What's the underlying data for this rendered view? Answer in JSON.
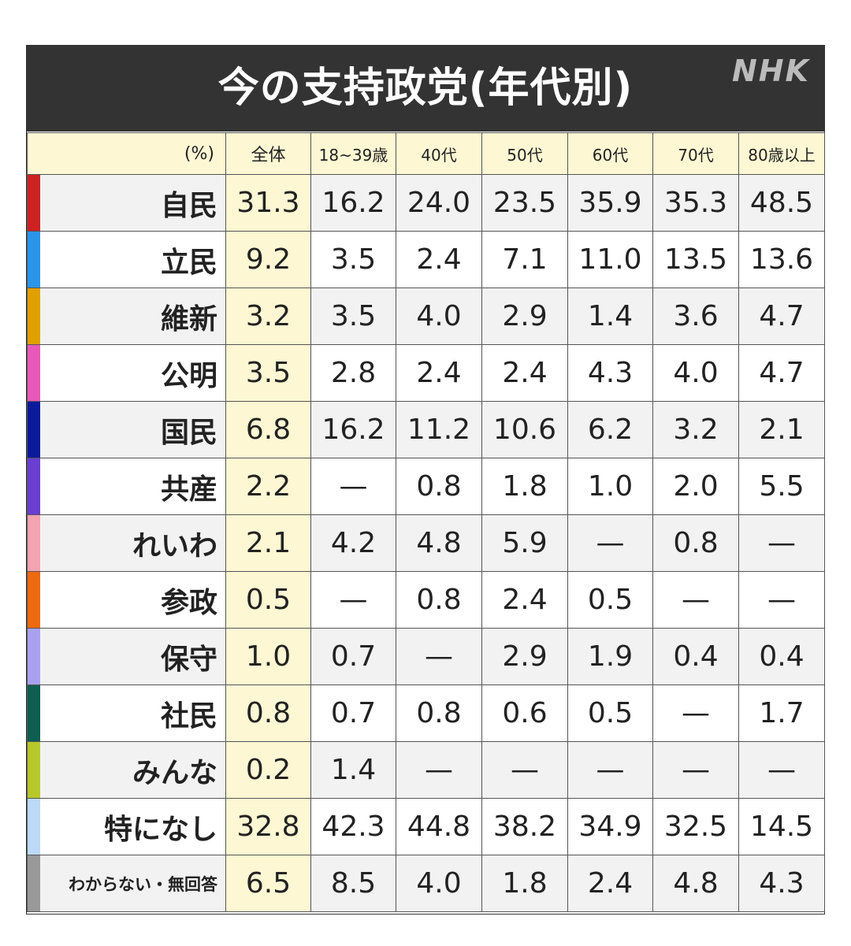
{
  "title": "今の支持政党(年代別)",
  "logo": "NHK",
  "chart_data": {
    "type": "table",
    "title": "今の支持政党(年代別)",
    "unit_label": "(%)",
    "columns": [
      "全体",
      "18~39歳",
      "40代",
      "50代",
      "60代",
      "70代",
      "80歳以上"
    ],
    "rows": [
      {
        "party": "自民",
        "color": "#cc2222",
        "values": [
          "31.3",
          "16.2",
          "24.0",
          "23.5",
          "35.9",
          "35.3",
          "48.5"
        ]
      },
      {
        "party": "立民",
        "color": "#2b95e9",
        "values": [
          "9.2",
          "3.5",
          "2.4",
          "7.1",
          "11.0",
          "13.5",
          "13.6"
        ]
      },
      {
        "party": "維新",
        "color": "#e0a000",
        "values": [
          "3.2",
          "3.5",
          "4.0",
          "2.9",
          "1.4",
          "3.6",
          "4.7"
        ]
      },
      {
        "party": "公明",
        "color": "#e858b8",
        "values": [
          "3.5",
          "2.8",
          "2.4",
          "2.4",
          "4.3",
          "4.0",
          "4.7"
        ]
      },
      {
        "party": "国民",
        "color": "#0b1a9a",
        "values": [
          "6.8",
          "16.2",
          "11.2",
          "10.6",
          "6.2",
          "3.2",
          "2.1"
        ]
      },
      {
        "party": "共産",
        "color": "#6a3ed0",
        "values": [
          "2.2",
          "—",
          "0.8",
          "1.8",
          "1.0",
          "2.0",
          "5.5"
        ]
      },
      {
        "party": "れいわ",
        "color": "#f4a3b0",
        "values": [
          "2.1",
          "4.2",
          "4.8",
          "5.9",
          "—",
          "0.8",
          "—"
        ]
      },
      {
        "party": "参政",
        "color": "#ec6a10",
        "values": [
          "0.5",
          "—",
          "0.8",
          "2.4",
          "0.5",
          "—",
          "—"
        ]
      },
      {
        "party": "保守",
        "color": "#a9a0f0",
        "values": [
          "1.0",
          "0.7",
          "—",
          "2.9",
          "1.9",
          "0.4",
          "0.4"
        ]
      },
      {
        "party": "社民",
        "color": "#0e5e52",
        "values": [
          "0.8",
          "0.7",
          "0.8",
          "0.6",
          "0.5",
          "—",
          "1.7"
        ]
      },
      {
        "party": "みんな",
        "color": "#b7c82a",
        "values": [
          "0.2",
          "1.4",
          "—",
          "—",
          "—",
          "—",
          "—"
        ]
      },
      {
        "party": "特になし",
        "color": "#bcd9f7",
        "values": [
          "32.8",
          "42.3",
          "44.8",
          "38.2",
          "34.9",
          "32.5",
          "14.5"
        ]
      },
      {
        "party": "わからない・無回答",
        "color": "#999999",
        "values": [
          "6.5",
          "8.5",
          "4.0",
          "1.8",
          "2.4",
          "4.8",
          "4.3"
        ]
      }
    ]
  }
}
